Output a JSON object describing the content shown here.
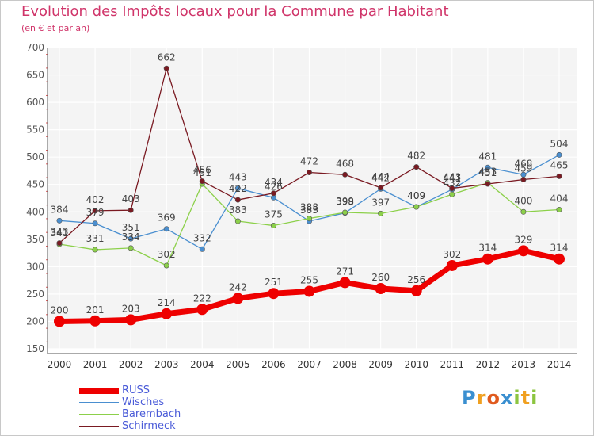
{
  "title": "Evolution des Impôts locaux pour la Commune par Habitant",
  "subtitle": "(en € et par an)",
  "logo": {
    "text": "Proxiti",
    "letters": [
      {
        "ch": "P",
        "color": "#3a8fd0"
      },
      {
        "ch": "r",
        "color": "#f0a020"
      },
      {
        "ch": "o",
        "color": "#e05a1e"
      },
      {
        "ch": "x",
        "color": "#3a8fd0"
      },
      {
        "ch": "i",
        "color": "#8cc540"
      },
      {
        "ch": "t",
        "color": "#f0a020"
      },
      {
        "ch": "i",
        "color": "#8cc540"
      }
    ]
  },
  "chart_data": {
    "type": "line",
    "x": [
      "2000",
      "2001",
      "2002",
      "2003",
      "2004",
      "2005",
      "2006",
      "2007",
      "2008",
      "2009",
      "2010",
      "2011",
      "2012",
      "2013",
      "2014"
    ],
    "ylim": [
      150,
      700
    ],
    "yticks": [
      150,
      200,
      250,
      300,
      350,
      400,
      450,
      500,
      550,
      600,
      650,
      700
    ],
    "grid": true,
    "legend_position": "bottom-left",
    "series": [
      {
        "name": "RUSS",
        "color": "#ee0000",
        "values": [
          200,
          201,
          203,
          214,
          222,
          242,
          251,
          255,
          271,
          260,
          256,
          302,
          314,
          329,
          314
        ]
      },
      {
        "name": "Wisches",
        "color": "#4a8fd0",
        "values": [
          384,
          379,
          351,
          369,
          332,
          443,
          426,
          383,
          398,
          442,
          409,
          441,
          481,
          468,
          504
        ]
      },
      {
        "name": "Barembach",
        "color": "#8cd04a",
        "values": [
          341,
          331,
          334,
          302,
          451,
          383,
          375,
          388,
          399,
          397,
          409,
          432,
          453,
          400,
          404
        ]
      },
      {
        "name": "Schirmeck",
        "color": "#7a1a22",
        "values": [
          343,
          402,
          403,
          662,
          456,
          422,
          434,
          472,
          468,
          444,
          482,
          443,
          451,
          459,
          465
        ]
      }
    ]
  }
}
